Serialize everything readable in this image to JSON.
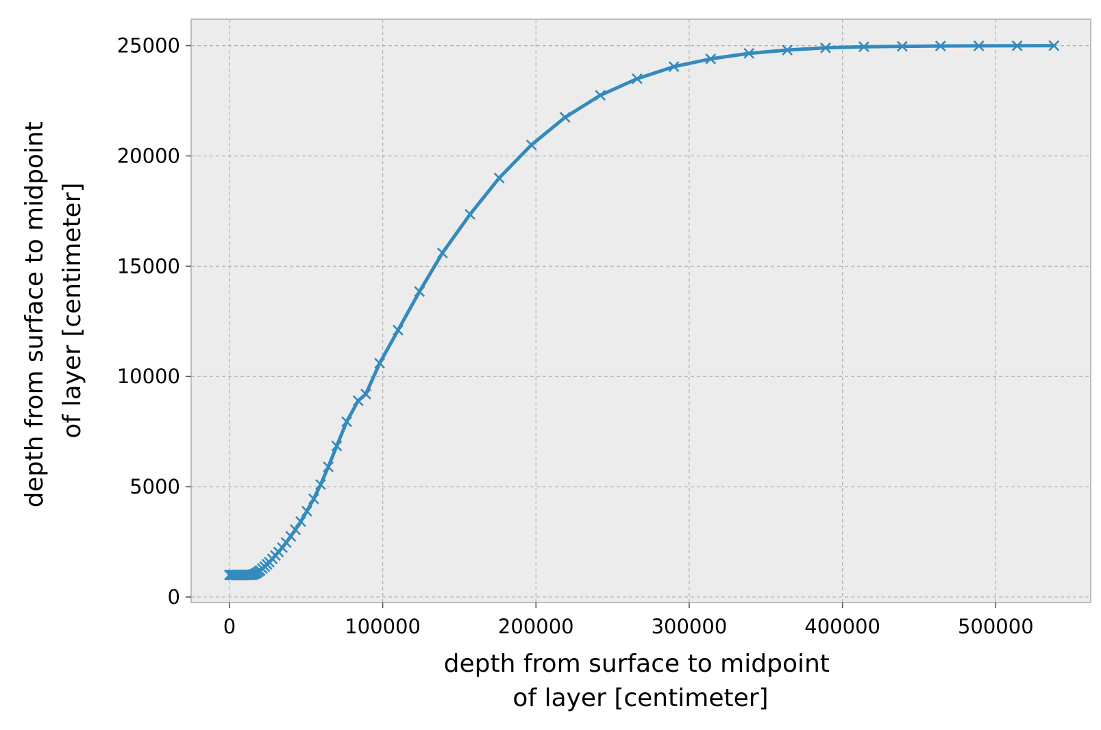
{
  "chart_data": {
    "type": "line",
    "title": "",
    "xlabel_lines": [
      "depth from surface to midpoint",
      "of layer [centimeter]"
    ],
    "ylabel_lines": [
      "depth from surface to midpoint",
      "of layer [centimeter]"
    ],
    "xlim": [
      -25000,
      562000
    ],
    "ylim": [
      -250,
      26200
    ],
    "xticks": [
      0,
      100000,
      200000,
      300000,
      400000,
      500000
    ],
    "xtick_labels": [
      "0",
      "100000",
      "200000",
      "300000",
      "400000",
      "500000"
    ],
    "yticks": [
      0,
      5000,
      10000,
      15000,
      20000,
      25000
    ],
    "ytick_labels": [
      "0",
      "5000",
      "10000",
      "15000",
      "20000",
      "25000"
    ],
    "grid": true,
    "background_color": "#ececec",
    "line_color": "#348abd",
    "marker": "x",
    "series": [
      {
        "x": [
          0,
          1000,
          2000,
          3000,
          4000,
          5000,
          6000,
          7000,
          8000,
          9000,
          10000,
          11000,
          12000,
          13000,
          14000,
          15000,
          16000,
          17000,
          18000,
          19000,
          20000,
          21500,
          23000,
          24500,
          26000,
          28000,
          30000,
          32000,
          34500,
          37000,
          40000,
          43000,
          46500,
          50500,
          55000,
          59500,
          64500,
          70000,
          76500,
          84000,
          89000,
          98000,
          110000,
          124000,
          139000,
          157000,
          176000,
          197000,
          219000,
          242000,
          266000,
          290000,
          314000,
          339000,
          364000,
          389000,
          414000,
          439000,
          464000,
          489000,
          514000,
          538000
        ],
        "y": [
          1000,
          1000,
          1000,
          1000,
          1000,
          1000,
          1000,
          1000,
          1000,
          1000,
          1000,
          1000,
          1000,
          1000,
          1000,
          1010,
          1030,
          1060,
          1100,
          1150,
          1200,
          1290,
          1380,
          1480,
          1580,
          1730,
          1880,
          2040,
          2240,
          2470,
          2750,
          3050,
          3420,
          3890,
          4450,
          5100,
          5900,
          6850,
          7950,
          8900,
          9200,
          10600,
          12100,
          13850,
          15600,
          17350,
          19000,
          20500,
          21750,
          22750,
          23500,
          24050,
          24400,
          24650,
          24800,
          24900,
          24950,
          24970,
          24985,
          24990,
          24995,
          25000
        ]
      }
    ]
  }
}
